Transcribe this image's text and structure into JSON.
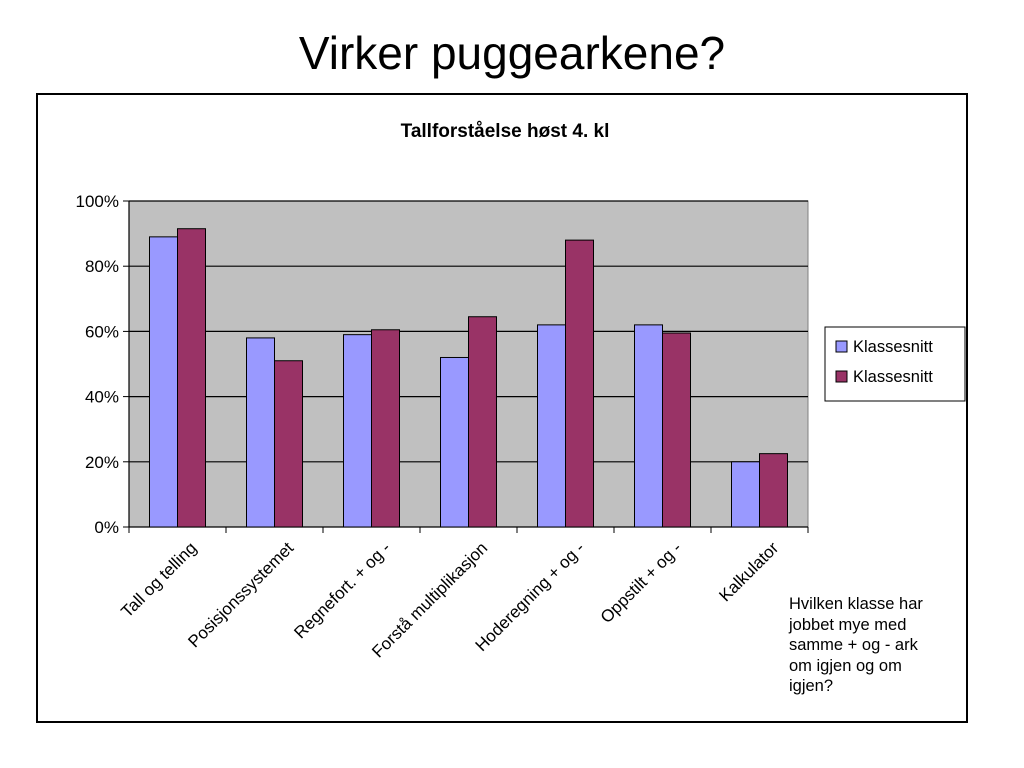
{
  "slide": {
    "title": "Virker puggearkene?",
    "note": "Hvilken klasse har\njobbet mye med\nsamme + og - ark\nom igjen og om\nigjen?"
  },
  "chart_data": {
    "type": "bar",
    "title": "Tallforståelse høst 4. kl",
    "xlabel": "",
    "ylabel": "",
    "ylim": [
      0,
      100
    ],
    "yticks": [
      "0%",
      "20%",
      "40%",
      "60%",
      "80%",
      "100%"
    ],
    "categories": [
      "Tall og telling",
      "Posisjonssystemet",
      "Regnefort. + og -",
      "Forstå multiplikasjon",
      "Hoderegning + og -",
      "Oppstilt + og -",
      "Kalkulator"
    ],
    "series": [
      {
        "name": "Klassesnitt",
        "color": "#9999ff",
        "values": [
          89,
          58,
          59,
          52,
          62,
          62,
          20
        ]
      },
      {
        "name": "Klassesnitt",
        "color": "#993366",
        "values": [
          91.5,
          51,
          60.5,
          64.5,
          88,
          59.5,
          22.5
        ]
      }
    ],
    "grid": true,
    "plot_background": "#c0c0c0",
    "legend_position": "right"
  }
}
